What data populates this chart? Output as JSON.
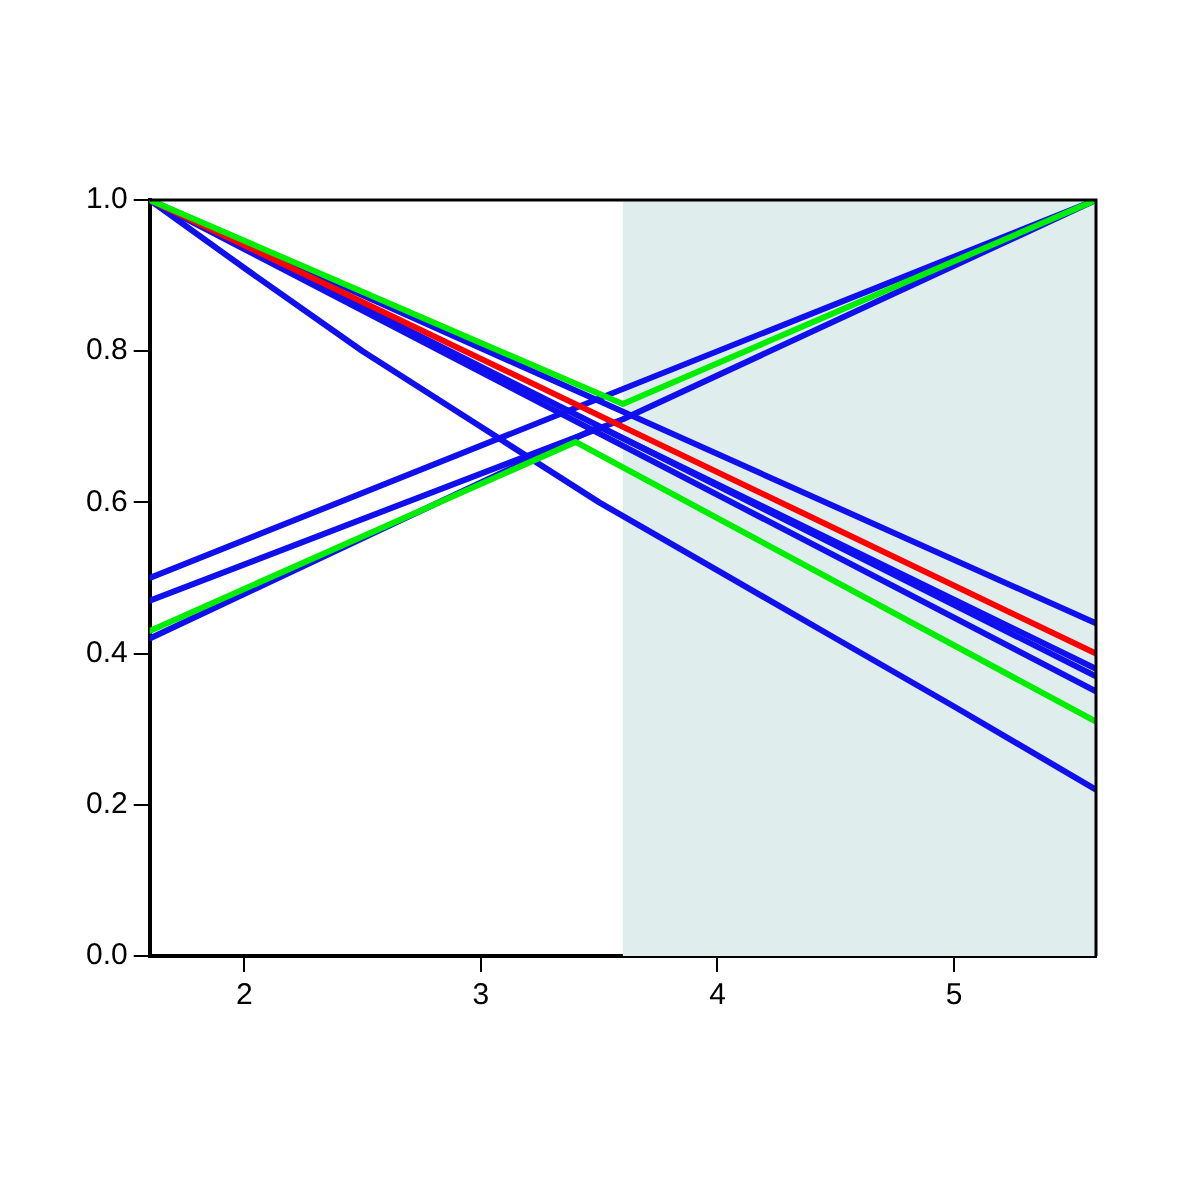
{
  "chart_data": {
    "type": "line",
    "xlim": [
      1.6,
      5.6
    ],
    "ylim": [
      0,
      1
    ],
    "xticks": [
      2,
      3,
      4,
      5
    ],
    "yticks": [
      {
        "value": 0,
        "label": "0.0"
      },
      {
        "value": 0.2,
        "label": "0.2"
      },
      {
        "value": 0.4,
        "label": "0.4"
      },
      {
        "value": 0.6,
        "label": "0.6"
      },
      {
        "value": 0.8,
        "label": "0.8"
      },
      {
        "value": 1,
        "label": "1.0"
      }
    ],
    "grid": false,
    "legend": false,
    "marker": "none",
    "line_style": "solid",
    "bands": [
      {
        "axis": "x",
        "from": 3.6,
        "to": 5.6,
        "color": "#e0eded"
      }
    ],
    "series": [
      {
        "color": "#1010ee",
        "x": [
          1.6,
          5.6
        ],
        "values": [
          0.5,
          1.0
        ]
      },
      {
        "color": "#1010ee",
        "x": [
          1.6,
          3.6,
          5.6
        ],
        "values": [
          0.47,
          0.71,
          1.0
        ]
      },
      {
        "color": "#1010ee",
        "x": [
          1.6,
          3.5,
          5.6
        ],
        "values": [
          0.42,
          0.7,
          0.38
        ]
      },
      {
        "color": "#1010ee",
        "x": [
          1.6,
          5.6
        ],
        "values": [
          1.0,
          0.44
        ]
      },
      {
        "color": "#1010ee",
        "x": [
          1.6,
          5.6
        ],
        "values": [
          1.0,
          0.37
        ]
      },
      {
        "color": "#1010ee",
        "x": [
          1.6,
          5.6
        ],
        "values": [
          1.0,
          0.35
        ]
      },
      {
        "color": "#1010ee",
        "x": [
          1.6,
          2.0,
          2.5,
          3.0,
          3.5,
          4.0,
          4.5,
          5.0,
          5.6
        ],
        "values": [
          1.0,
          0.91,
          0.8,
          0.7,
          0.6,
          0.51,
          0.42,
          0.33,
          0.22
        ]
      },
      {
        "color": "#ff0000",
        "x": [
          1.6,
          5.6
        ],
        "values": [
          1.0,
          0.4
        ]
      },
      {
        "color": "#00ee00",
        "x": [
          1.6,
          3.6,
          5.6
        ],
        "values": [
          1.0,
          0.73,
          1.0
        ]
      },
      {
        "color": "#00ee00",
        "x": [
          1.6,
          3.4,
          5.6
        ],
        "values": [
          0.43,
          0.68,
          0.31
        ]
      }
    ]
  }
}
